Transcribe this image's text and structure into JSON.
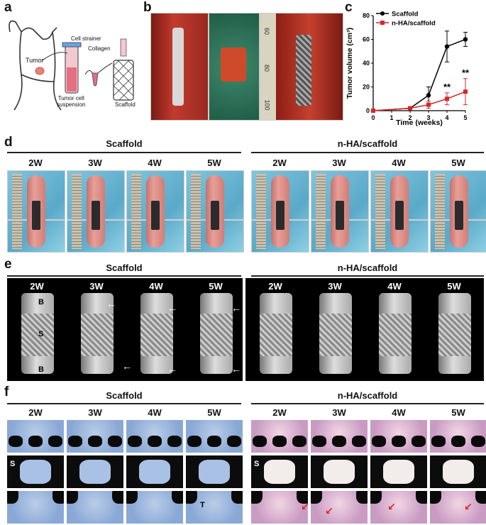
{
  "panels": {
    "a": {
      "label": "a",
      "texts": {
        "tumor": "Tumor",
        "cell_strainer": "Cell strainer",
        "collagen": "Collagen",
        "suspension": "Tumor cell\nsuspension",
        "scaffold": "Scaffold"
      }
    },
    "b": {
      "label": "b",
      "ruler_marks": [
        "60",
        "80",
        "100"
      ]
    },
    "c": {
      "label": "c"
    },
    "d": {
      "label": "d",
      "groups": [
        "Scaffold",
        "n-HA/scaffold"
      ],
      "weeks": [
        "2W",
        "3W",
        "4W",
        "5W"
      ]
    },
    "e": {
      "label": "e",
      "groups": [
        "Scaffold",
        "n-HA/scaffold"
      ],
      "weeks": [
        "2W",
        "3W",
        "4W",
        "5W"
      ],
      "ct_labels": [
        "B",
        "S",
        "B"
      ]
    },
    "f": {
      "label": "f",
      "groups": [
        "Scaffold",
        "n-HA/scaffold"
      ],
      "weeks": [
        "2W",
        "3W",
        "4W",
        "5W"
      ],
      "s_label": "S",
      "t_label": "T"
    }
  },
  "chart_data": {
    "type": "line",
    "x": [
      0,
      2,
      3,
      4,
      5
    ],
    "xlabel": "Time (weeks)",
    "ylabel": "Tumor volume (cm³)",
    "xlim": [
      0,
      5
    ],
    "ylim": [
      0,
      80
    ],
    "xticks": [
      "0",
      "1",
      "2",
      "3",
      "4",
      "5"
    ],
    "yticks": [
      "0",
      "20",
      "40",
      "60",
      "80"
    ],
    "series": [
      {
        "name": "Scaffold",
        "color": "#000000",
        "marker": "circle",
        "x": [
          0,
          2,
          3,
          4,
          5
        ],
        "values": [
          0,
          2,
          13,
          54,
          60
        ],
        "err": [
          0,
          1,
          7,
          13,
          6
        ]
      },
      {
        "name": "n-HA/scaffold",
        "color": "#d62728",
        "marker": "square",
        "x": [
          0,
          2,
          3,
          4,
          5
        ],
        "values": [
          0,
          2,
          5,
          10,
          16
        ],
        "err": [
          0,
          1,
          3,
          5,
          11
        ]
      }
    ],
    "annotations": [
      {
        "x": 4,
        "text": "**"
      },
      {
        "x": 5,
        "text": "**"
      }
    ],
    "legend": "top-left"
  }
}
